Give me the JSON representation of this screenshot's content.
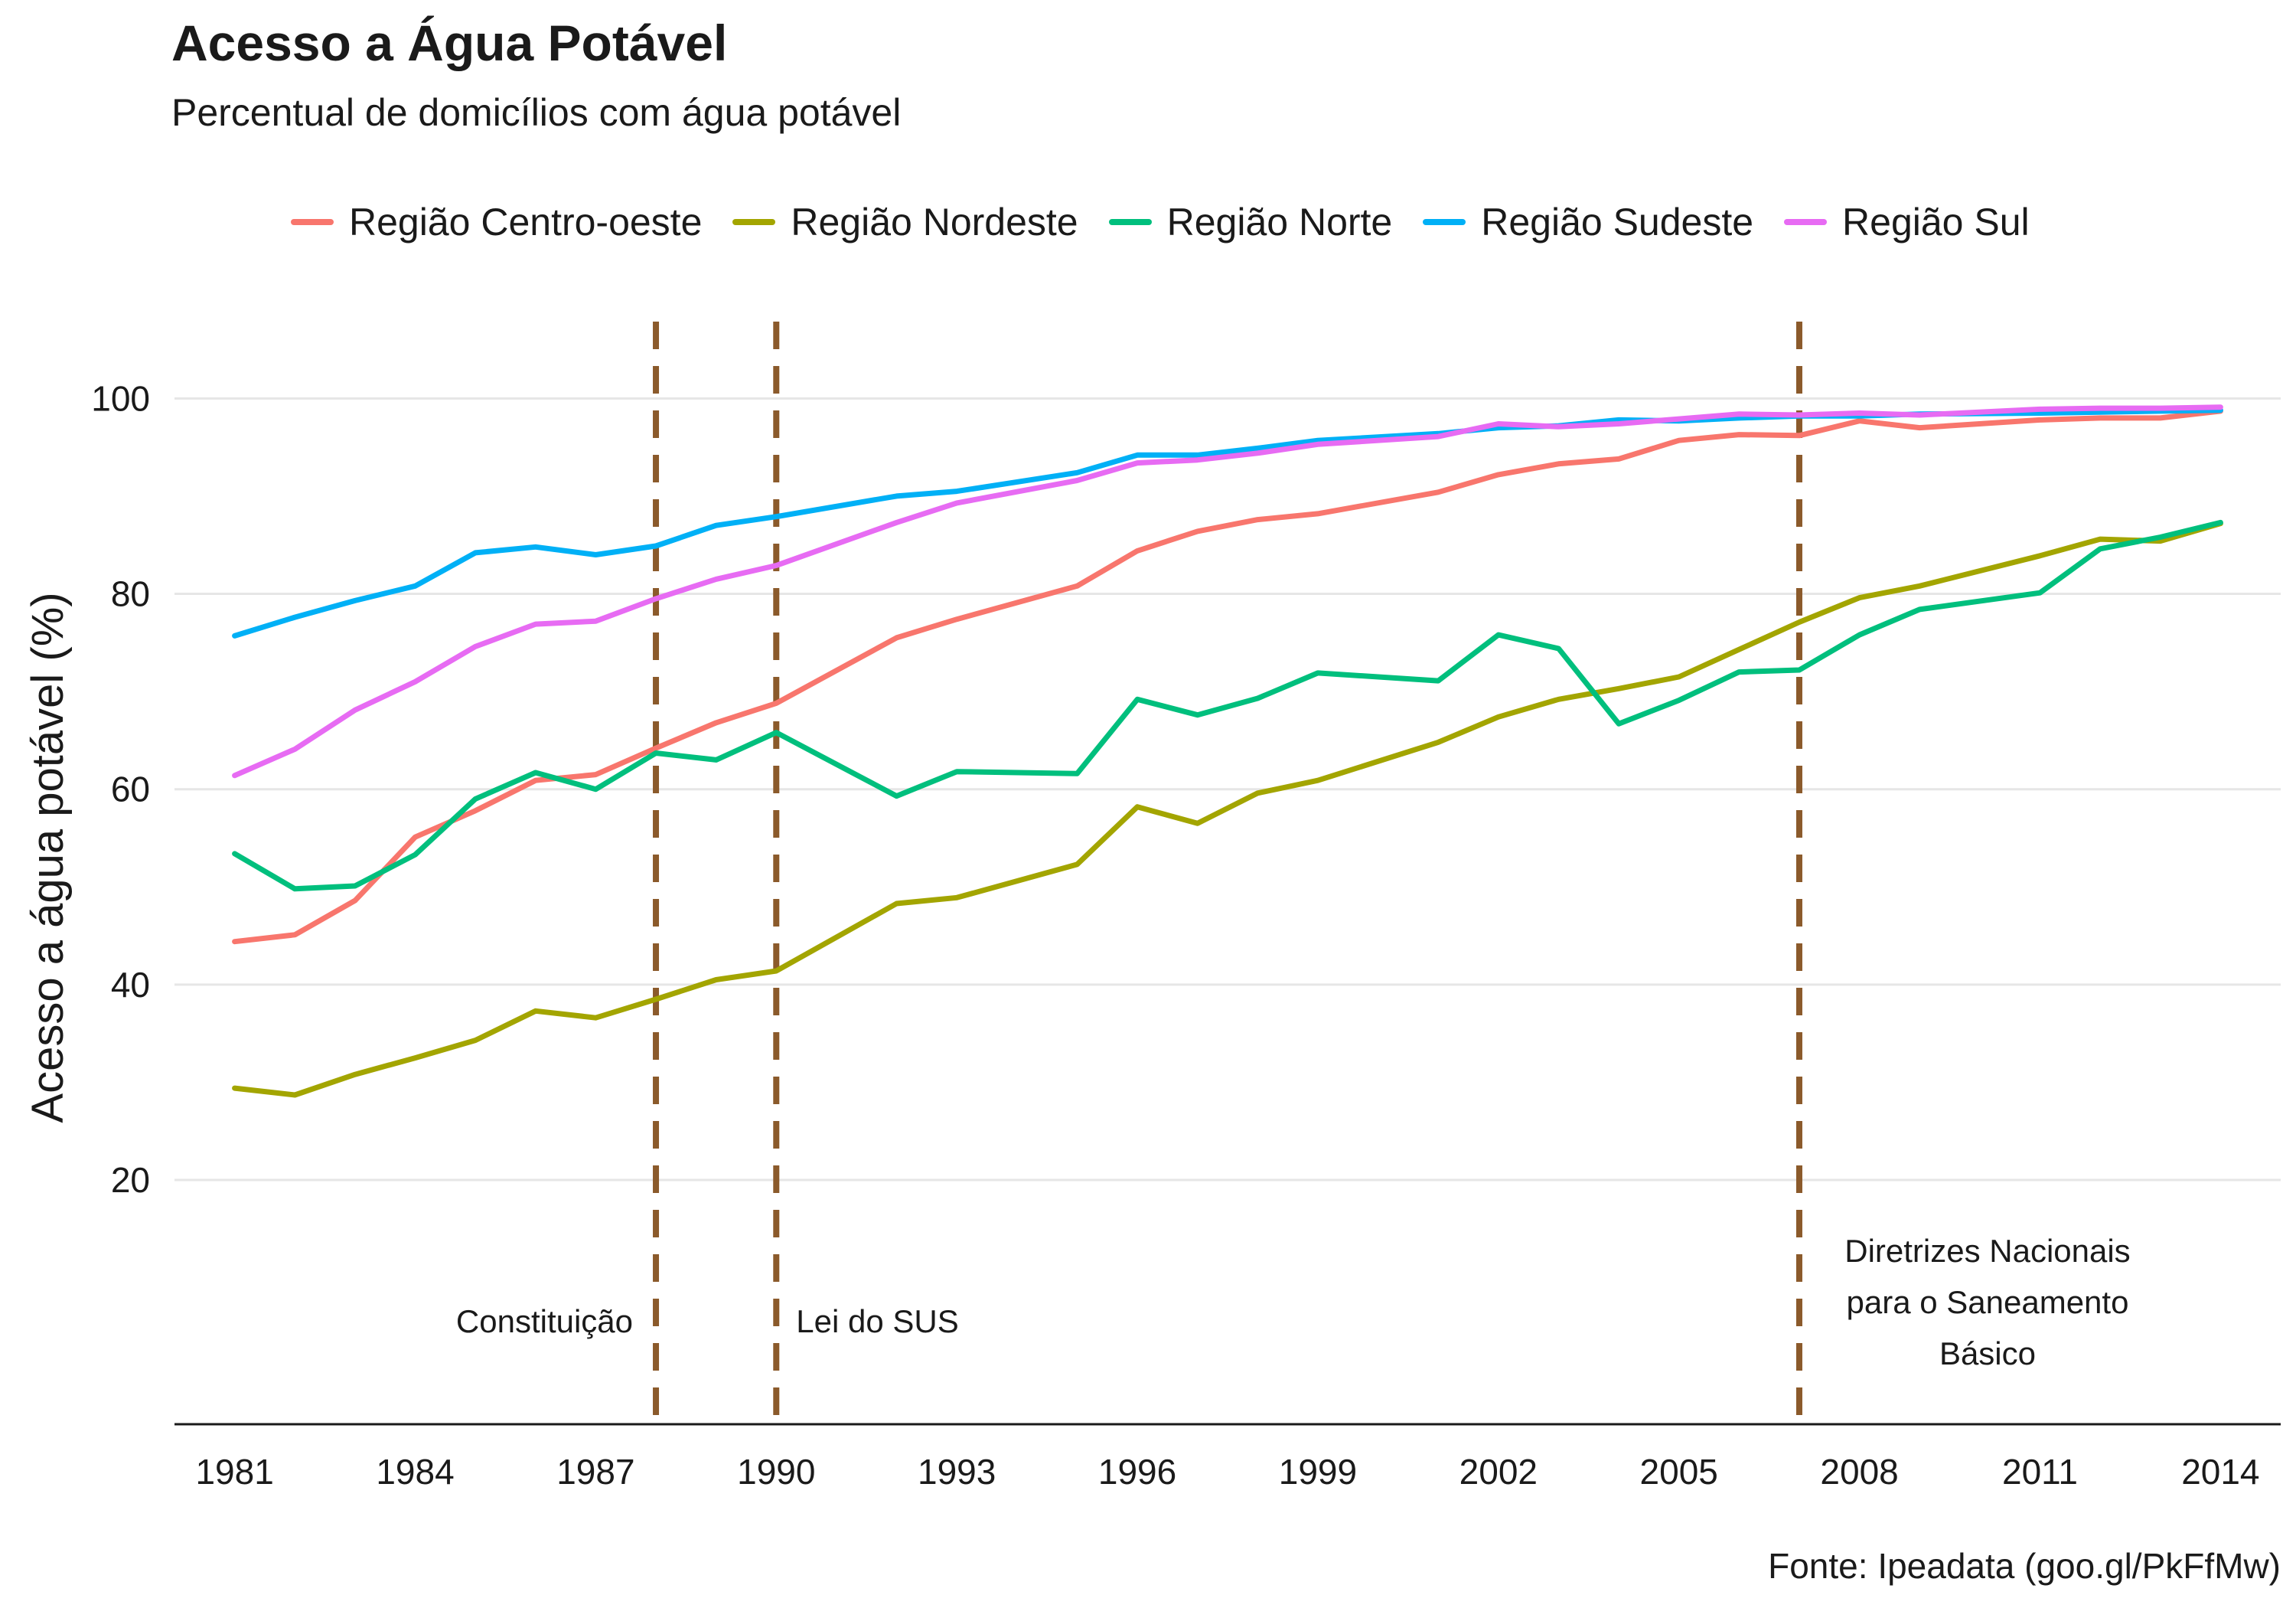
{
  "chart_data": {
    "type": "line",
    "title": "Acesso a Água Potável",
    "subtitle": "Percentual de domicílios com água potável",
    "xlabel": "",
    "ylabel": "Acesso a água potável (%)",
    "source": "Fonte: Ipeadata (goo.gl/PkFfMw)",
    "xlim": [
      1980,
      2015
    ],
    "ylim": [
      -5,
      111
    ],
    "x_ticks": [
      "1981",
      "1984",
      "1987",
      "1990",
      "1993",
      "1996",
      "1999",
      "2002",
      "2005",
      "2008",
      "2011",
      "2014"
    ],
    "y_ticks": [
      "20",
      "40",
      "60",
      "80",
      "100"
    ],
    "grid": true,
    "legend_position": "top",
    "x": [
      1981,
      1982,
      1983,
      1984,
      1985,
      1986,
      1987,
      1988,
      1989,
      1990,
      1992,
      1993,
      1995,
      1996,
      1997,
      1998,
      1999,
      2001,
      2002,
      2003,
      2004,
      2005,
      2006,
      2007,
      2008,
      2009,
      2011,
      2012,
      2013,
      2014
    ],
    "series": [
      {
        "name": "Região Centro-oeste",
        "color": "#F8766D",
        "values": [
          44.4,
          45.1,
          48.6,
          55.1,
          57.8,
          60.9,
          61.5,
          64.2,
          66.8,
          68.8,
          75.5,
          77.4,
          80.8,
          84.4,
          86.4,
          87.6,
          88.2,
          90.4,
          92.2,
          93.3,
          93.8,
          95.7,
          96.3,
          96.2,
          97.7,
          97.0,
          97.8,
          98.0,
          98.0,
          98.7
        ]
      },
      {
        "name": "Região Nordeste",
        "color": "#A3A500",
        "values": [
          29.4,
          28.7,
          30.8,
          32.5,
          34.3,
          37.3,
          36.6,
          38.5,
          40.5,
          41.4,
          48.3,
          48.9,
          52.3,
          58.2,
          56.5,
          59.6,
          60.9,
          64.8,
          67.4,
          69.2,
          70.3,
          71.5,
          74.3,
          77.1,
          79.6,
          80.8,
          83.9,
          85.6,
          85.4,
          87.2
        ]
      },
      {
        "name": "Região Norte",
        "color": "#00BF7D",
        "values": [
          53.4,
          49.8,
          50.1,
          53.3,
          59.0,
          61.7,
          60.0,
          63.7,
          63.0,
          65.8,
          59.3,
          61.8,
          61.6,
          69.2,
          67.6,
          69.3,
          71.9,
          71.1,
          75.8,
          74.4,
          66.7,
          69.1,
          72.0,
          72.2,
          75.8,
          78.4,
          80.1,
          84.6,
          85.8,
          87.3
        ]
      },
      {
        "name": "Região Sudeste",
        "color": "#00B0F6",
        "values": [
          75.7,
          77.6,
          79.3,
          80.8,
          84.2,
          84.8,
          84.0,
          84.9,
          87.0,
          87.9,
          90.0,
          90.5,
          92.4,
          94.2,
          94.2,
          94.9,
          95.7,
          96.4,
          97.0,
          97.2,
          97.8,
          97.7,
          98.0,
          98.2,
          98.2,
          98.4,
          98.5,
          98.6,
          98.7,
          98.8
        ]
      },
      {
        "name": "Região Sul",
        "color": "#E76BF3",
        "values": [
          61.4,
          64.1,
          68.1,
          71.0,
          74.6,
          76.9,
          77.2,
          79.5,
          81.5,
          82.9,
          87.3,
          89.3,
          91.6,
          93.4,
          93.7,
          94.4,
          95.3,
          96.1,
          97.4,
          97.1,
          97.4,
          97.9,
          98.4,
          98.3,
          98.5,
          98.3,
          98.9,
          99.0,
          99.0,
          99.1
        ]
      }
    ],
    "annotations": [
      {
        "x": 1988,
        "lines": [
          "Constituição"
        ],
        "side": "left"
      },
      {
        "x": 1990,
        "lines": [
          "Lei do SUS"
        ],
        "side": "right"
      },
      {
        "x": 2007,
        "lines": [
          "Diretrizes Nacionais",
          "para o Saneamento",
          "Básico"
        ],
        "side": "right"
      }
    ],
    "vline_color": "#8B5A2B"
  }
}
